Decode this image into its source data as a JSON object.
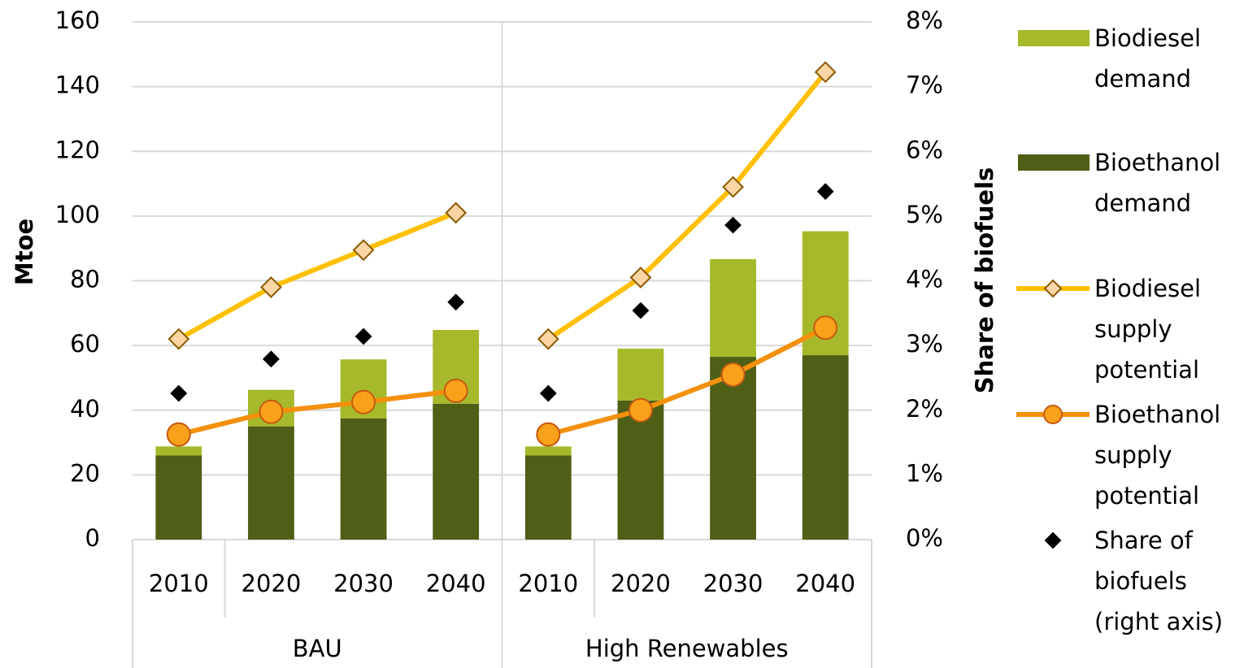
{
  "chart_data": {
    "type": "bar",
    "groups": [
      {
        "name": "BAU",
        "categories": [
          "2010",
          "2020",
          "2030",
          "2040"
        ]
      },
      {
        "name": "High Renewables",
        "categories": [
          "2010",
          "2020",
          "2030",
          "2040"
        ]
      }
    ],
    "series": [
      {
        "name": "Biodiesel demand",
        "type": "bar",
        "color": "#a6b92a",
        "values": [
          2.8,
          11.3,
          18.2,
          22.8,
          2.8,
          16,
          30.2,
          38.3
        ]
      },
      {
        "name": "Bioethanol demand",
        "type": "bar",
        "color": "#4f5f16",
        "values": [
          26,
          35,
          37.5,
          42,
          26,
          43,
          56.5,
          57
        ]
      },
      {
        "name": "Biodiesel supply potential",
        "type": "line",
        "marker": "diamond",
        "color": "#ffc000",
        "marker_fill": "#fcd5a5",
        "marker_stroke": "#8b5a00",
        "values": [
          62,
          78,
          89.5,
          101,
          62,
          81,
          109,
          144.5
        ]
      },
      {
        "name": "Bioethanol supply potential",
        "type": "line",
        "marker": "circle",
        "color": "#f4900c",
        "marker_fill": "#f9a11b",
        "marker_stroke": "#c55a11",
        "values": [
          32.5,
          39.5,
          42.5,
          46,
          32.5,
          40,
          51,
          65.5
        ]
      },
      {
        "name": "Share of biofuels (right axis)",
        "type": "scatter",
        "marker": "diamond",
        "color": "#000000",
        "axis": "y2",
        "values": [
          2.26,
          2.79,
          3.14,
          3.67,
          2.26,
          3.54,
          4.86,
          5.38
        ]
      }
    ],
    "y_label": "Mtoe",
    "y2_label": "Share of biofuels",
    "ylim": [
      0,
      160
    ],
    "yticks": [
      0,
      20,
      40,
      60,
      80,
      100,
      120,
      140,
      160
    ],
    "y2lim": [
      0,
      8
    ],
    "y2ticks": [
      {
        "value": 0,
        "label": "0%"
      },
      {
        "value": 1,
        "label": "1%"
      },
      {
        "value": 2,
        "label": "2%"
      },
      {
        "value": 3,
        "label": "3%"
      },
      {
        "value": 4,
        "label": "4%"
      },
      {
        "value": 5,
        "label": "5%"
      },
      {
        "value": 6,
        "label": "6%"
      },
      {
        "value": 7,
        "label": "7%"
      },
      {
        "value": 8,
        "label": "8%"
      }
    ],
    "grid": true,
    "legend": "right"
  }
}
